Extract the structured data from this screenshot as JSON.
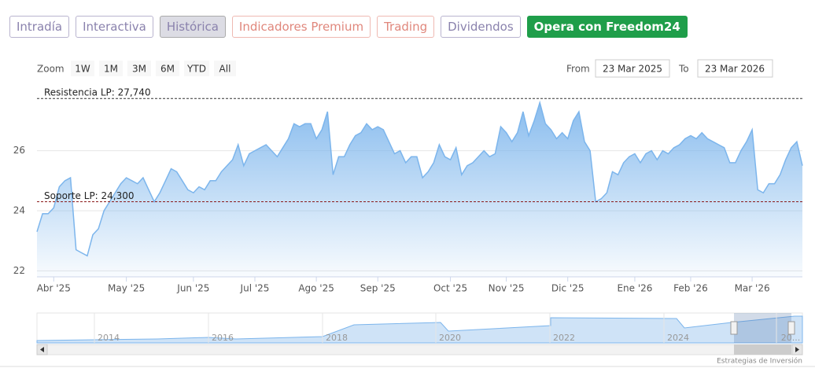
{
  "tabs": [
    "Intradía",
    "Interactiva",
    "Histórica",
    "Indicadores Premium",
    "Trading",
    "Dividendos",
    "Opera con Freedom24"
  ],
  "range_selector": {
    "label": "Zoom",
    "buttons": [
      "1W",
      "1M",
      "3M",
      "6M",
      "YTD",
      "All"
    ],
    "from_label": "From",
    "from": "23 Mar 2025",
    "to_label": "To",
    "to": "23 Mar 2026"
  },
  "chart_data": {
    "type": "area",
    "color": "#7cb5ec",
    "categories": [
      null,
      null,
      null,
      "Abr '25",
      null,
      null,
      null,
      null,
      null,
      null,
      null,
      null,
      null,
      null,
      null,
      null,
      "May '25",
      null,
      null,
      null,
      null,
      null,
      null,
      null,
      null,
      null,
      null,
      null,
      "Jun '25",
      null,
      null,
      null,
      null,
      null,
      null,
      null,
      null,
      null,
      null,
      "Jul '25",
      null,
      null,
      null,
      null,
      null,
      null,
      null,
      null,
      null,
      null,
      "Ago '25",
      null,
      null,
      null,
      null,
      null,
      null,
      null,
      null,
      null,
      null,
      "Sep '25",
      null,
      null,
      null,
      null,
      null,
      null,
      null,
      null,
      null,
      null,
      null,
      null,
      "Oct '25",
      null,
      null,
      null,
      null,
      null,
      null,
      null,
      null,
      null,
      "Nov '25",
      null,
      null,
      null,
      null,
      null,
      null,
      null,
      null,
      null,
      null,
      "Dic '25",
      null,
      null,
      null,
      null,
      null,
      null,
      null,
      null,
      null,
      null,
      null,
      "Ene '26",
      null,
      null,
      null,
      null,
      null,
      null,
      null,
      null,
      null,
      "Feb '26",
      null,
      null,
      null,
      null,
      null,
      null,
      null,
      null,
      null,
      null,
      "Mar '26",
      null,
      null,
      null,
      null,
      null,
      null,
      null,
      null,
      null
    ],
    "values": [
      23.3,
      23.9,
      23.9,
      24.1,
      24.8,
      25.0,
      25.1,
      22.7,
      22.6,
      22.5,
      23.2,
      23.4,
      24.0,
      24.3,
      24.6,
      24.9,
      25.1,
      25.0,
      24.9,
      25.1,
      24.7,
      24.3,
      24.6,
      25.0,
      25.4,
      25.3,
      25.0,
      24.7,
      24.6,
      24.8,
      24.7,
      25.0,
      25.0,
      25.3,
      25.5,
      25.7,
      26.2,
      25.5,
      25.9,
      26.0,
      26.1,
      26.2,
      26.0,
      25.8,
      26.1,
      26.4,
      26.9,
      26.8,
      26.9,
      26.9,
      26.4,
      26.7,
      27.3,
      25.2,
      25.8,
      25.8,
      26.2,
      26.5,
      26.6,
      26.9,
      26.7,
      26.8,
      26.7,
      26.3,
      25.9,
      26.0,
      25.6,
      25.8,
      25.8,
      25.1,
      25.3,
      25.6,
      26.2,
      25.8,
      25.7,
      26.1,
      25.2,
      25.5,
      25.6,
      25.8,
      26.0,
      25.8,
      25.9,
      26.8,
      26.6,
      26.3,
      26.6,
      27.3,
      26.5,
      27.0,
      27.6,
      26.9,
      26.7,
      26.4,
      26.6,
      26.4,
      27.0,
      27.3,
      26.3,
      26.0,
      24.3,
      24.4,
      24.6,
      25.3,
      25.2,
      25.6,
      25.8,
      25.9,
      25.6,
      25.9,
      26.0,
      25.7,
      26.0,
      25.9,
      26.1,
      26.2,
      26.4,
      26.5,
      26.4,
      26.6,
      26.4,
      26.3,
      26.2,
      26.1,
      25.6,
      25.6,
      26.0,
      26.3,
      26.7,
      24.7,
      24.6,
      24.9,
      24.9,
      25.2,
      25.7,
      26.1,
      26.3,
      25.5
    ],
    "ylim": [
      21.8,
      28.4
    ],
    "yticks": [
      22,
      24,
      26
    ],
    "grid": true,
    "annotations": [
      {
        "label": "Resistencia LP: 27,740",
        "value": 27.74,
        "color": "#333333"
      },
      {
        "label": "Soporte LP: 24,300",
        "value": 24.3,
        "color": "#8b1a1a"
      }
    ]
  },
  "navigator": {
    "labels": [
      "2014",
      "2016",
      "2018",
      "2020",
      "2022",
      "2024",
      "20..."
    ]
  },
  "credits": "Estrategias de Inversión"
}
